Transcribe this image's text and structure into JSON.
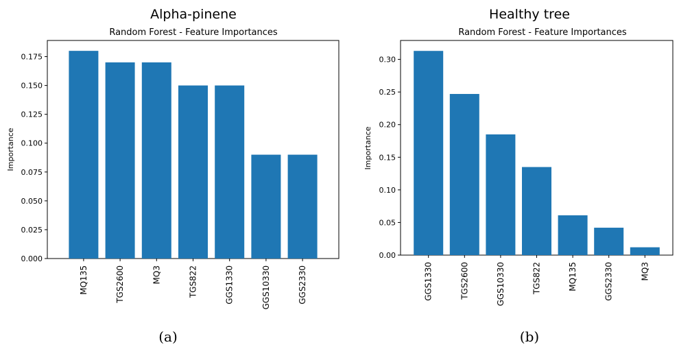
{
  "chart_data": [
    {
      "type": "bar",
      "title": "Alpha-pinene",
      "subtitle": "Random Forest - Feature Importances",
      "xlabel": "",
      "ylabel": "Importance",
      "categories": [
        "MQ135",
        "TGS2600",
        "MQ3",
        "TGS822",
        "GGS1330",
        "GGS10330",
        "GGS2330"
      ],
      "values": [
        0.18,
        0.17,
        0.17,
        0.15,
        0.15,
        0.09,
        0.09
      ],
      "ylim": [
        0,
        0.189
      ],
      "yticks": [
        "0.000",
        "0.025",
        "0.050",
        "0.075",
        "0.100",
        "0.125",
        "0.150",
        "0.175"
      ],
      "caption": "(a)",
      "bar_color": "#1f77b4",
      "grid": false
    },
    {
      "type": "bar",
      "title": "Healthy tree",
      "subtitle": "Random Forest - Feature Importances",
      "xlabel": "",
      "ylabel": "Importance",
      "categories": [
        "GGS1330",
        "TGS2600",
        "GGS10330",
        "TGS822",
        "MQ135",
        "GGS2330",
        "MQ3"
      ],
      "values": [
        0.313,
        0.247,
        0.185,
        0.135,
        0.061,
        0.042,
        0.012
      ],
      "ylim": [
        0,
        0.329
      ],
      "yticks": [
        "0.00",
        "0.05",
        "0.10",
        "0.15",
        "0.20",
        "0.25",
        "0.30"
      ],
      "caption": "(b)",
      "bar_color": "#1f77b4",
      "grid": false
    }
  ]
}
